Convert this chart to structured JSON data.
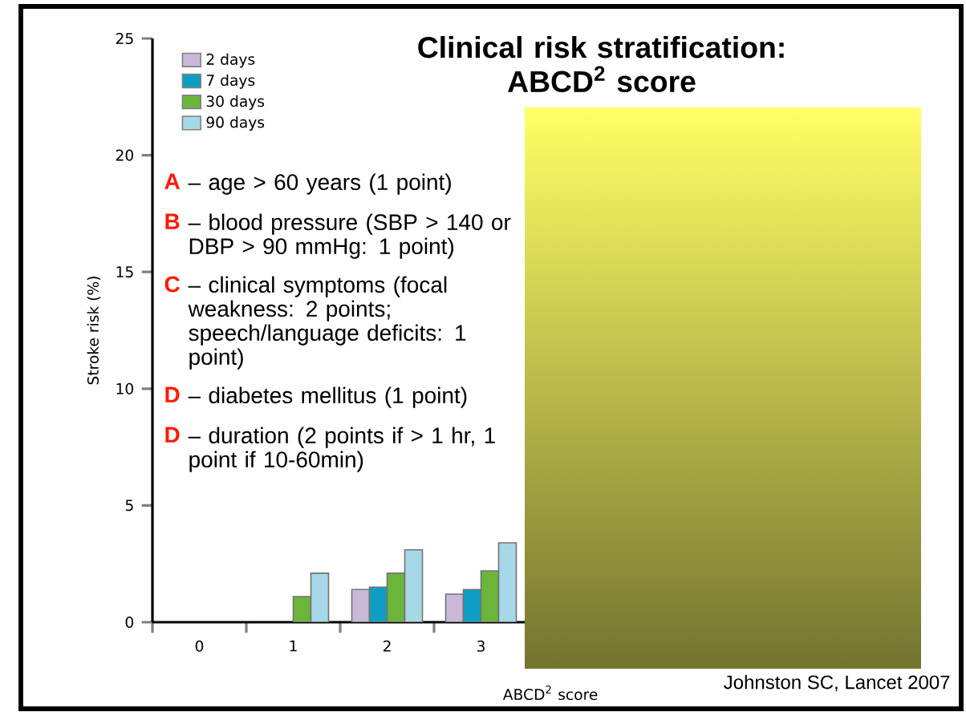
{
  "chart_data": {
    "type": "bar",
    "title": "Clinical risk stratification: ABCD$^{2}$ score",
    "xlabel": "ABCD$^{2}$ score",
    "ylabel": "Stroke risk (%)",
    "categories": [
      "0",
      "1",
      "2",
      "3",
      null,
      null,
      null,
      null
    ],
    "series": [
      {
        "name": "2 days",
        "color": "#c9b8d8",
        "values": [
          null,
          null,
          1.4,
          1.2,
          null,
          null,
          null,
          null
        ]
      },
      {
        "name": "7 days",
        "color": "#0e9ec4",
        "values": [
          null,
          null,
          1.5,
          1.4,
          null,
          null,
          null,
          null
        ]
      },
      {
        "name": "30 days",
        "color": "#6ab53a",
        "values": [
          null,
          1.1,
          2.1,
          2.2,
          null,
          null,
          null,
          null
        ]
      },
      {
        "name": "90 days",
        "color": "#a6d8e8",
        "values": [
          null,
          2.1,
          3.1,
          3.4,
          null,
          null,
          null,
          null
        ]
      }
    ],
    "ylim": [
      0,
      25
    ],
    "yticks": [
      0,
      5,
      10,
      15,
      20,
      25
    ],
    "legend": "top left",
    "annotations": [
      "A",
      "– age > 60 years (1 point)",
      "B",
      "– blood pressure (SBP > 140 or DBP > 90 mmHg: 1 point)",
      "C",
      "– clinical symptoms (focal weakness: 2 points; speech/language deficits: 1 point)",
      "D",
      "– diabetes mellitus (1 point)",
      "D",
      "– duration (2 points if > 1 hr, 1 point if 10-60min)",
      "Johnston SC, Lancet 2007"
    ]
  }
}
